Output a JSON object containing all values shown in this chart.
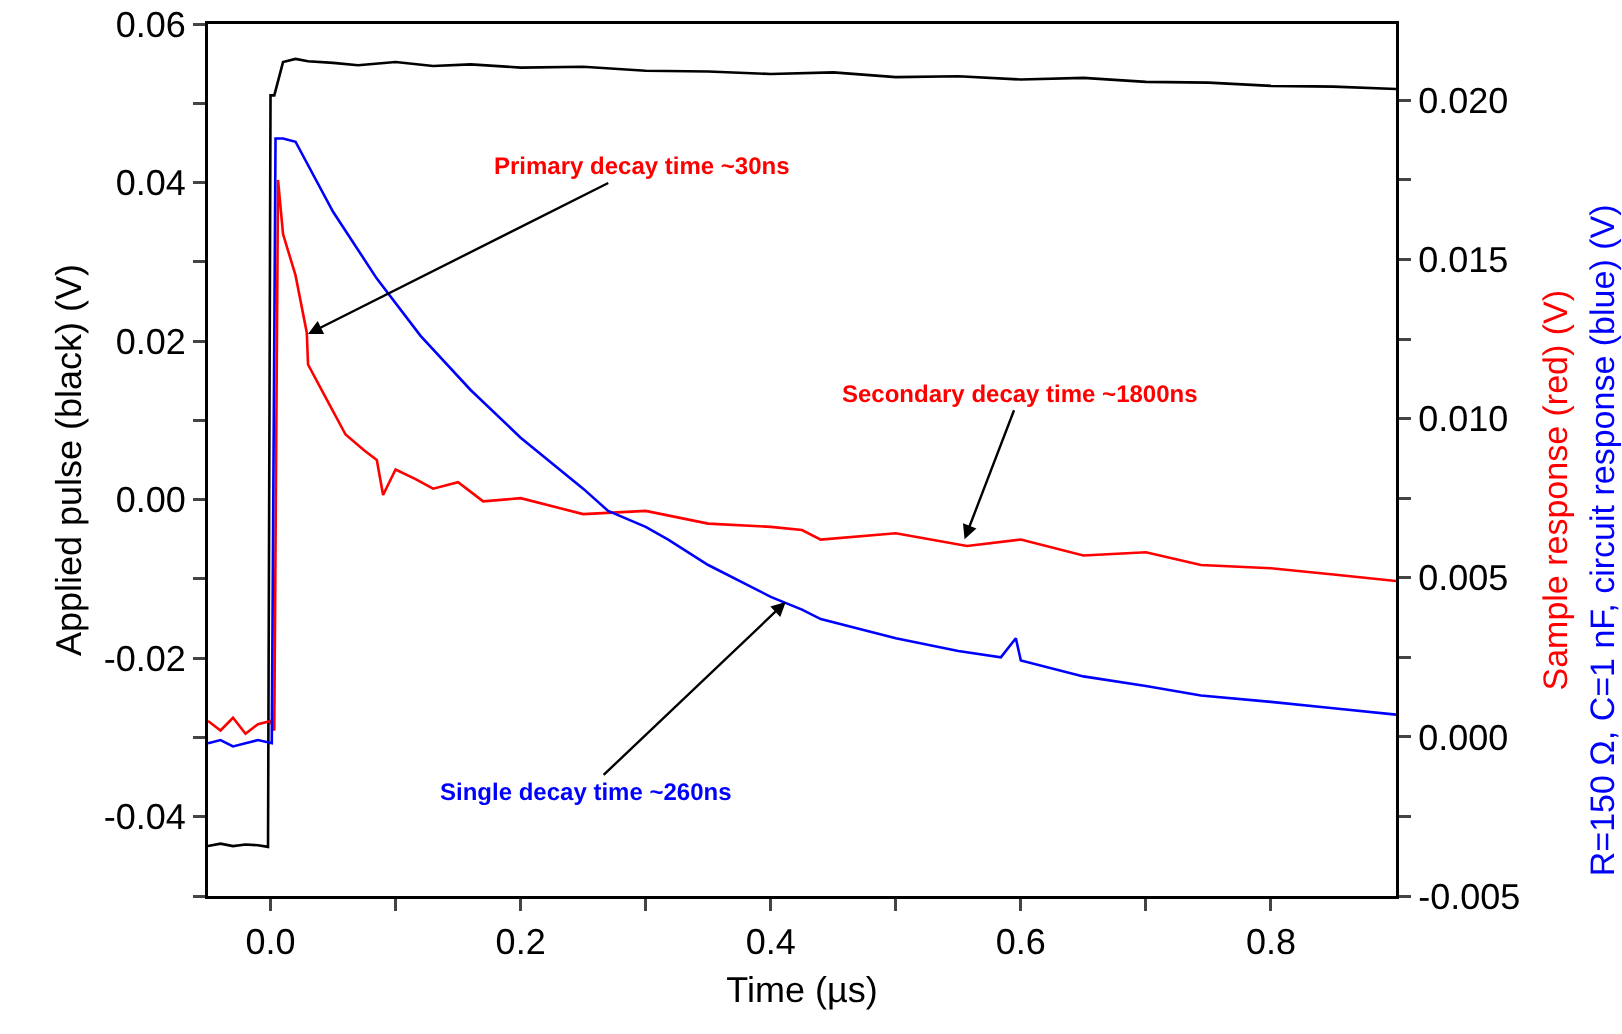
{
  "chart_data": {
    "type": "line",
    "xlabel": "Time (µs)",
    "ylabel": "Applied pulse (black) (V)",
    "y2label": [
      "Sample response (red) (V)",
      "R=150 Ω, C=1 nF, circuit response (blue) (V)"
    ],
    "xlim": [
      -0.05,
      0.9
    ],
    "xticks": [
      {
        "value": 0,
        "label": "0.0"
      },
      {
        "value": 0.1,
        "label": null
      },
      0.2,
      {
        "value": 0.3,
        "label": null
      },
      0.4,
      {
        "value": 0.5,
        "label": null
      },
      0.6,
      {
        "value": 0.7,
        "label": null
      },
      0.8
    ],
    "ylim": [
      -0.05,
      0.06
    ],
    "yticks": [
      {
        "value": -0.05,
        "label": null
      },
      -0.04,
      {
        "value": -0.03,
        "label": null
      },
      -0.02,
      {
        "value": -0.01,
        "label": null
      },
      {
        "value": 0,
        "label": "0.00"
      },
      {
        "value": 0.01,
        "label": null
      },
      0.02,
      {
        "value": 0.03,
        "label": null
      },
      0.04,
      {
        "value": 0.05,
        "label": null
      },
      0.06
    ],
    "y2lim": [
      -0.005,
      0.0224
    ],
    "y2ticks": [
      {
        "value": -0.005,
        "label": "-0.005"
      },
      {
        "value": -0.0025,
        "label": null
      },
      {
        "value": 0,
        "label": "0.000"
      },
      {
        "value": 0.0025,
        "label": null
      },
      {
        "value": 0.005,
        "label": "0.005"
      },
      {
        "value": 0.0075,
        "label": null
      },
      {
        "value": 0.01,
        "label": "0.010"
      },
      {
        "value": 0.0125,
        "label": null
      },
      {
        "value": 0.015,
        "label": "0.015"
      },
      {
        "value": 0.0175,
        "label": null
      },
      {
        "value": 0.02,
        "label": "0.020"
      }
    ],
    "line_style": "solid",
    "series": [
      {
        "color": "#000000",
        "x": [
          -0.05,
          -0.04,
          -0.03,
          -0.02,
          -0.01,
          -0.002,
          0,
          0.003,
          0.01,
          0.02,
          0.03,
          0.05,
          0.07,
          0.1,
          0.13,
          0.16,
          0.2,
          0.25,
          0.3,
          0.35,
          0.4,
          0.45,
          0.5,
          0.55,
          0.6,
          0.65,
          0.7,
          0.75,
          0.8,
          0.85,
          0.9
        ],
        "values": [
          -0.0437,
          -0.0434,
          -0.0437,
          -0.0435,
          -0.0436,
          -0.0438,
          0.051,
          0.051,
          0.0552,
          0.0556,
          0.0553,
          0.0551,
          0.0548,
          0.0552,
          0.0547,
          0.0549,
          0.0545,
          0.0546,
          0.0541,
          0.054,
          0.0537,
          0.0539,
          0.0533,
          0.0534,
          0.053,
          0.0532,
          0.0527,
          0.0526,
          0.0522,
          0.0521,
          0.0518
        ]
      },
      {
        "color": "#ff0000",
        "axis": "y2",
        "x": [
          -0.05,
          -0.04,
          -0.03,
          -0.02,
          -0.01,
          0,
          0.003,
          0.006,
          0.01,
          0.02,
          0.029,
          0.03,
          0.045,
          0.06,
          0.075,
          0.085,
          0.09,
          0.1,
          0.116,
          0.13,
          0.15,
          0.17,
          0.2,
          0.25,
          0.3,
          0.35,
          0.4,
          0.425,
          0.44,
          0.5,
          0.557,
          0.6,
          0.65,
          0.7,
          0.744,
          0.8,
          0.85,
          0.9
        ],
        "values": [
          0.0005,
          0.0002,
          0.0006,
          0.0001,
          0.0004,
          0.0005,
          0.0002,
          0.0175,
          0.0158,
          0.0145,
          0.0127,
          0.0117,
          0.0106,
          0.0095,
          0.009,
          0.0087,
          0.0076,
          0.0084,
          0.0081,
          0.0078,
          0.008,
          0.0074,
          0.0075,
          0.007,
          0.0071,
          0.0067,
          0.0066,
          0.0065,
          0.0062,
          0.0064,
          0.006,
          0.0062,
          0.0057,
          0.0058,
          0.0054,
          0.0053,
          0.0051,
          0.0049
        ]
      },
      {
        "color": "#0000ff",
        "axis": "y2",
        "x": [
          -0.05,
          -0.04,
          -0.03,
          -0.02,
          -0.01,
          0.001,
          0.004,
          0.01,
          0.02,
          0.05,
          0.085,
          0.12,
          0.16,
          0.2,
          0.25,
          0.27,
          0.3,
          0.318,
          0.35,
          0.4,
          0.425,
          0.44,
          0.5,
          0.55,
          0.584,
          0.596,
          0.6,
          0.65,
          0.7,
          0.744,
          0.8,
          0.85,
          0.9
        ],
        "values": [
          -0.0002,
          -0.0001,
          -0.0003,
          -0.0002,
          -0.0001,
          -0.0002,
          0.0188,
          0.0188,
          0.0187,
          0.0165,
          0.0144,
          0.0126,
          0.0109,
          0.0094,
          0.0078,
          0.0071,
          0.0066,
          0.0062,
          0.0054,
          0.0044,
          0.004,
          0.0037,
          0.0031,
          0.0027,
          0.0025,
          0.0031,
          0.0024,
          0.0019,
          0.0016,
          0.0013,
          0.0011,
          0.0009,
          0.0007
        ]
      }
    ],
    "annotations": [
      {
        "text": "Primary decay time ~30ns",
        "x": 0.03,
        "y": 0.0209
      },
      {
        "text": "Secondary decay time ~1800ns",
        "x": 0.555,
        "y": -0.005
      },
      {
        "text": "Single decay time ~260ns",
        "x": 0.412,
        "y": -0.0129
      }
    ]
  }
}
